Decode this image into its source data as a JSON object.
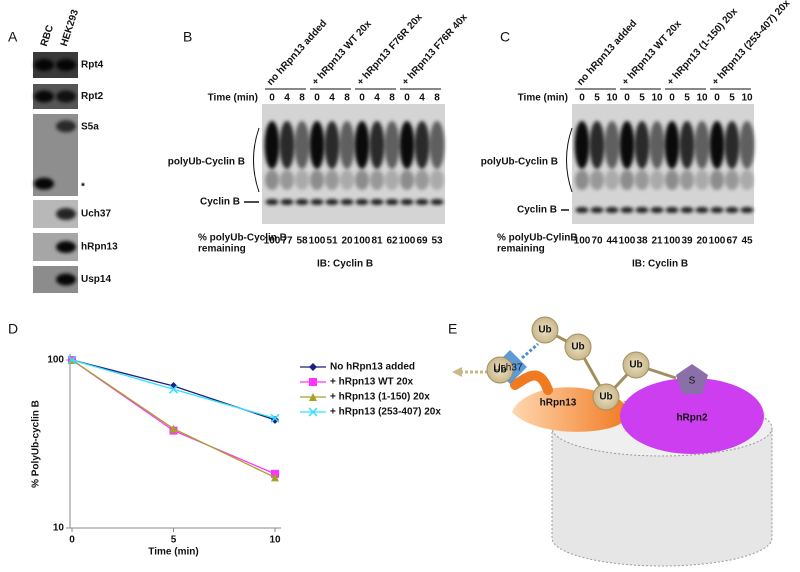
{
  "panel_a": {
    "label": "A",
    "lanes": [
      "RBC",
      "HEK293"
    ],
    "blots": [
      "Rpt4",
      "Rpt2",
      "S5a",
      "Uch37",
      "hRpn13",
      "Usp14"
    ],
    "marker": "*"
  },
  "panel_b": {
    "label": "B",
    "conditions": [
      "no hRpn13 added",
      "+ hRpn13 WT 20x",
      "+ hRpn13 F76R 20x",
      "+ hRpn13 F76R 40x"
    ],
    "time_label": "Time (min)",
    "times": [
      0,
      4,
      8,
      0,
      4,
      8,
      0,
      4,
      8,
      0,
      4,
      8
    ],
    "smear_label": "polyUb-Cyclin B",
    "band_label": "Cyclin B",
    "remaining_label": [
      "% polyUb-Cyclin B",
      "remaining"
    ],
    "remaining": [
      100,
      77,
      58,
      100,
      51,
      20,
      100,
      81,
      62,
      100,
      69,
      53
    ],
    "antibody": "IB: Cyclin B"
  },
  "panel_c": {
    "label": "C",
    "conditions": [
      "no hRpn13 added",
      "+ hRpn13 WT 20x",
      "+ hRpn13 (1-150) 20x",
      "+ hRpn13 (253-407) 20x"
    ],
    "time_label": "Time (min)",
    "times": [
      0,
      5,
      10,
      0,
      5,
      10,
      0,
      5,
      10,
      0,
      5,
      10
    ],
    "smear_label": "polyUb-Cyclin B",
    "band_label": "Cyclin B",
    "remaining_label": [
      "% polyUb-CylinB",
      "remaining"
    ],
    "remaining": [
      100,
      70,
      44,
      100,
      38,
      21,
      100,
      39,
      20,
      100,
      67,
      45
    ],
    "antibody": "IB: Cyclin B"
  },
  "panel_d": {
    "label": "D"
  },
  "chart_data": {
    "type": "line",
    "x_label": "Time (min)",
    "y_label": "% PolyUb-cyclin B",
    "x": [
      0,
      5,
      10
    ],
    "xlim": [
      0,
      10
    ],
    "xticks": [
      0,
      5,
      10
    ],
    "ylim": [
      10,
      100
    ],
    "yticks": [
      10,
      100
    ],
    "y_scale": "log",
    "legend": "right",
    "series": [
      {
        "name": "No hRpn13 added",
        "color": "#1c1f7c",
        "marker": "diamond",
        "values": [
          100,
          70,
          44
        ]
      },
      {
        "name": "+ hRpn13 WT 20x",
        "color": "#ff33ff",
        "marker": "square",
        "values": [
          100,
          38,
          21
        ]
      },
      {
        "name": "+ hRpn13 (1-150) 20x",
        "color": "#a3a324",
        "marker": "triangle",
        "values": [
          100,
          39,
          20
        ]
      },
      {
        "name": "+ hRpn13 (253-407) 20x",
        "color": "#33e0ff",
        "marker": "x",
        "values": [
          100,
          67,
          45
        ]
      }
    ]
  },
  "panel_e": {
    "label": "E",
    "ubiquitins": [
      "Ub",
      "Ub",
      "Ub",
      "Ub",
      "Ub"
    ],
    "dub": "Uch37",
    "receptor": "hRpn13",
    "subunit": "hRpn2",
    "substrate": "S"
  }
}
